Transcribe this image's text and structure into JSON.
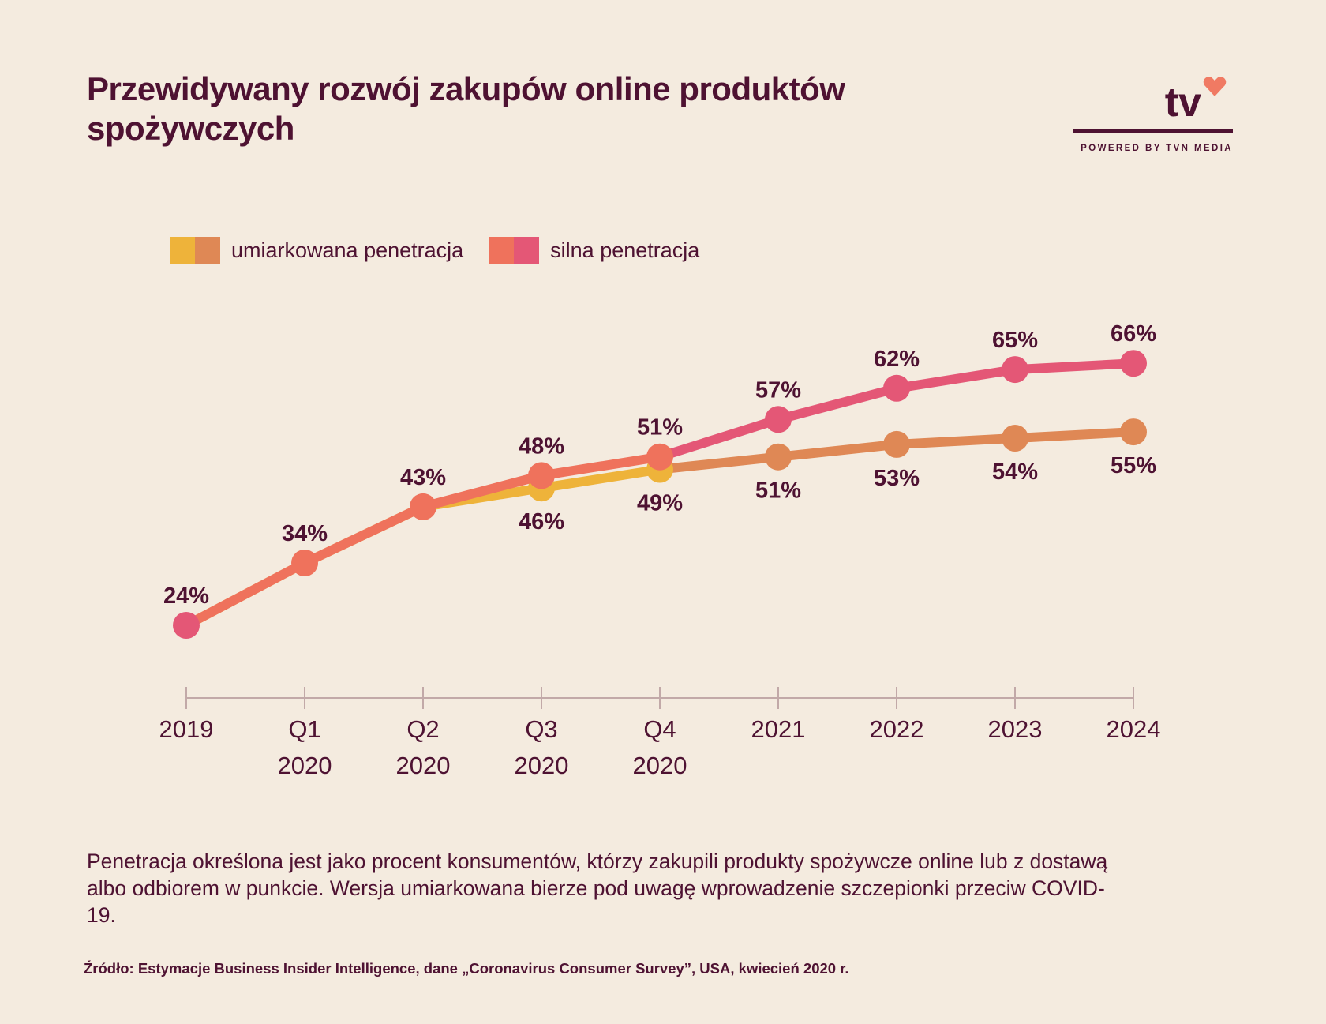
{
  "title": "Przewidywany rozwój zakupów online produktów spożywczych",
  "logo": {
    "mark": "tv",
    "tagline": "POWERED BY TVN MEDIA",
    "icon": "heart-icon"
  },
  "colors": {
    "background": "#f4ebdf",
    "text": "#4e1232",
    "moderate_a": "#eeb33a",
    "moderate_b": "#df8855",
    "strong_a": "#ef725c",
    "strong_b": "#e45776",
    "axis": "#c2a9a8",
    "heart": "#f07a63"
  },
  "legend": [
    {
      "label": "umiarkowana penetracja",
      "colors": [
        "#eeb33a",
        "#df8855"
      ]
    },
    {
      "label": "silna penetracja",
      "colors": [
        "#ef725c",
        "#e45776"
      ]
    }
  ],
  "chart_data": {
    "type": "line",
    "title": "Przewidywany rozwój zakupów online produktów spożywczych",
    "categories": [
      "2019",
      "Q1 2020",
      "Q2 2020",
      "Q3 2020",
      "Q4 2020",
      "2021",
      "2022",
      "2023",
      "2024"
    ],
    "category_lines": [
      [
        "2019"
      ],
      [
        "Q1",
        "2020"
      ],
      [
        "Q2",
        "2020"
      ],
      [
        "Q3",
        "2020"
      ],
      [
        "Q4",
        "2020"
      ],
      [
        "2021"
      ],
      [
        "2022"
      ],
      [
        "2023"
      ],
      [
        "2024"
      ]
    ],
    "series": [
      {
        "name": "umiarkowana penetracja",
        "values": [
          24,
          34,
          43,
          46,
          49,
          51,
          53,
          54,
          55
        ]
      },
      {
        "name": "silna penetracja",
        "values": [
          24,
          34,
          43,
          48,
          51,
          57,
          62,
          65,
          66
        ]
      }
    ],
    "data_labels": {
      "umiarkowana penetracja": [
        null,
        null,
        null,
        "46%",
        "49%",
        "51%",
        "53%",
        "54%",
        "55%"
      ],
      "silna penetracja": [
        "24%",
        "34%",
        "43%",
        "48%",
        "51%",
        "57%",
        "62%",
        "65%",
        "66%"
      ]
    },
    "unit": "%",
    "xlabel": "",
    "ylabel": "",
    "ylim": [
      20,
      70
    ],
    "grid": false,
    "legend_position": "top-left"
  },
  "note": "Penetracja określona jest jako procent konsumentów, którzy zakupili produkty spożywcze online lub z dostawą albo odbiorem w punkcie. Wersja umiarkowana bierze pod uwagę wprowadzenie szczepionki przeciw COVID-19.",
  "source": "Źródło: Estymacje Business Insider Intelligence, dane „Coronavirus Consumer Survey”, USA, kwiecień 2020 r."
}
